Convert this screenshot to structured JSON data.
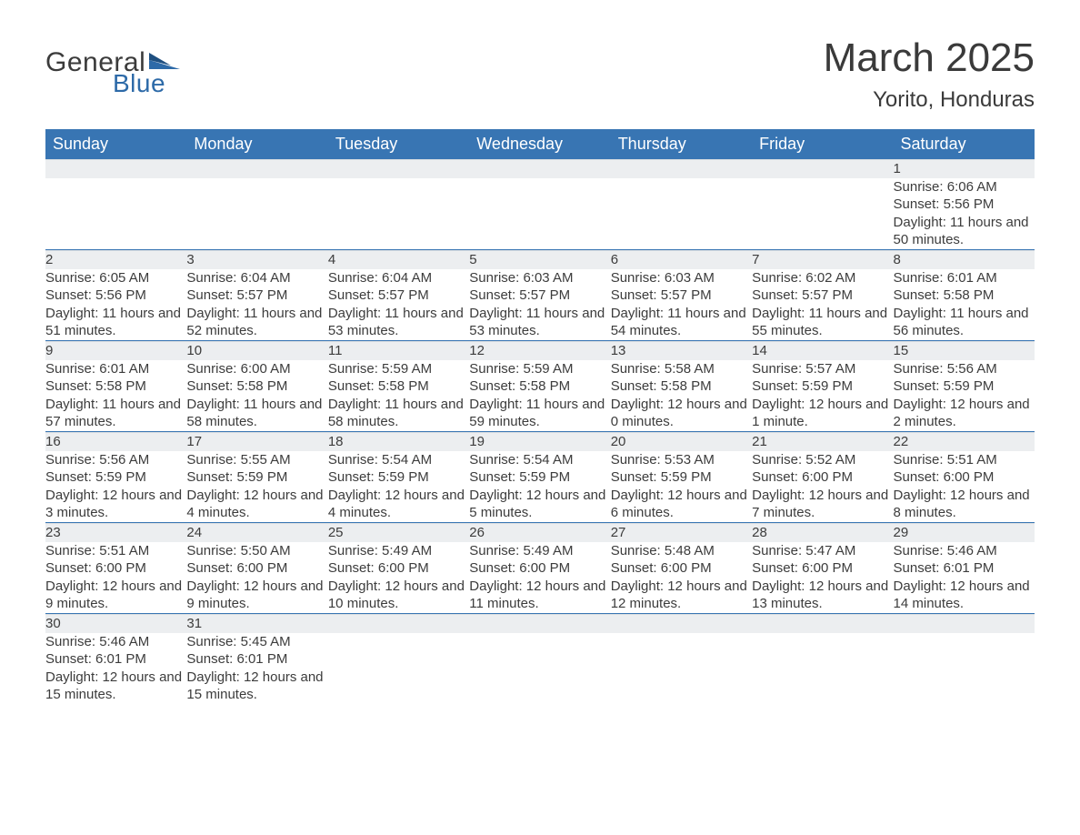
{
  "brand": {
    "name_part1": "General",
    "name_part2": "Blue"
  },
  "title": "March 2025",
  "subtitle": "Yorito, Honduras",
  "colors": {
    "header_bg": "#3875b3",
    "header_text": "#ffffff",
    "daynum_bg": "#eceef0",
    "text": "#3c3c3c",
    "page_bg": "#ffffff"
  },
  "weekdays": [
    "Sunday",
    "Monday",
    "Tuesday",
    "Wednesday",
    "Thursday",
    "Friday",
    "Saturday"
  ],
  "weeks": [
    [
      null,
      null,
      null,
      null,
      null,
      null,
      {
        "n": 1,
        "sunrise": "6:06 AM",
        "sunset": "5:56 PM",
        "daylight": "11 hours and 50 minutes."
      }
    ],
    [
      {
        "n": 2,
        "sunrise": "6:05 AM",
        "sunset": "5:56 PM",
        "daylight": "11 hours and 51 minutes."
      },
      {
        "n": 3,
        "sunrise": "6:04 AM",
        "sunset": "5:57 PM",
        "daylight": "11 hours and 52 minutes."
      },
      {
        "n": 4,
        "sunrise": "6:04 AM",
        "sunset": "5:57 PM",
        "daylight": "11 hours and 53 minutes."
      },
      {
        "n": 5,
        "sunrise": "6:03 AM",
        "sunset": "5:57 PM",
        "daylight": "11 hours and 53 minutes."
      },
      {
        "n": 6,
        "sunrise": "6:03 AM",
        "sunset": "5:57 PM",
        "daylight": "11 hours and 54 minutes."
      },
      {
        "n": 7,
        "sunrise": "6:02 AM",
        "sunset": "5:57 PM",
        "daylight": "11 hours and 55 minutes."
      },
      {
        "n": 8,
        "sunrise": "6:01 AM",
        "sunset": "5:58 PM",
        "daylight": "11 hours and 56 minutes."
      }
    ],
    [
      {
        "n": 9,
        "sunrise": "6:01 AM",
        "sunset": "5:58 PM",
        "daylight": "11 hours and 57 minutes."
      },
      {
        "n": 10,
        "sunrise": "6:00 AM",
        "sunset": "5:58 PM",
        "daylight": "11 hours and 58 minutes."
      },
      {
        "n": 11,
        "sunrise": "5:59 AM",
        "sunset": "5:58 PM",
        "daylight": "11 hours and 58 minutes."
      },
      {
        "n": 12,
        "sunrise": "5:59 AM",
        "sunset": "5:58 PM",
        "daylight": "11 hours and 59 minutes."
      },
      {
        "n": 13,
        "sunrise": "5:58 AM",
        "sunset": "5:58 PM",
        "daylight": "12 hours and 0 minutes."
      },
      {
        "n": 14,
        "sunrise": "5:57 AM",
        "sunset": "5:59 PM",
        "daylight": "12 hours and 1 minute."
      },
      {
        "n": 15,
        "sunrise": "5:56 AM",
        "sunset": "5:59 PM",
        "daylight": "12 hours and 2 minutes."
      }
    ],
    [
      {
        "n": 16,
        "sunrise": "5:56 AM",
        "sunset": "5:59 PM",
        "daylight": "12 hours and 3 minutes."
      },
      {
        "n": 17,
        "sunrise": "5:55 AM",
        "sunset": "5:59 PM",
        "daylight": "12 hours and 4 minutes."
      },
      {
        "n": 18,
        "sunrise": "5:54 AM",
        "sunset": "5:59 PM",
        "daylight": "12 hours and 4 minutes."
      },
      {
        "n": 19,
        "sunrise": "5:54 AM",
        "sunset": "5:59 PM",
        "daylight": "12 hours and 5 minutes."
      },
      {
        "n": 20,
        "sunrise": "5:53 AM",
        "sunset": "5:59 PM",
        "daylight": "12 hours and 6 minutes."
      },
      {
        "n": 21,
        "sunrise": "5:52 AM",
        "sunset": "6:00 PM",
        "daylight": "12 hours and 7 minutes."
      },
      {
        "n": 22,
        "sunrise": "5:51 AM",
        "sunset": "6:00 PM",
        "daylight": "12 hours and 8 minutes."
      }
    ],
    [
      {
        "n": 23,
        "sunrise": "5:51 AM",
        "sunset": "6:00 PM",
        "daylight": "12 hours and 9 minutes."
      },
      {
        "n": 24,
        "sunrise": "5:50 AM",
        "sunset": "6:00 PM",
        "daylight": "12 hours and 9 minutes."
      },
      {
        "n": 25,
        "sunrise": "5:49 AM",
        "sunset": "6:00 PM",
        "daylight": "12 hours and 10 minutes."
      },
      {
        "n": 26,
        "sunrise": "5:49 AM",
        "sunset": "6:00 PM",
        "daylight": "12 hours and 11 minutes."
      },
      {
        "n": 27,
        "sunrise": "5:48 AM",
        "sunset": "6:00 PM",
        "daylight": "12 hours and 12 minutes."
      },
      {
        "n": 28,
        "sunrise": "5:47 AM",
        "sunset": "6:00 PM",
        "daylight": "12 hours and 13 minutes."
      },
      {
        "n": 29,
        "sunrise": "5:46 AM",
        "sunset": "6:01 PM",
        "daylight": "12 hours and 14 minutes."
      }
    ],
    [
      {
        "n": 30,
        "sunrise": "5:46 AM",
        "sunset": "6:01 PM",
        "daylight": "12 hours and 15 minutes."
      },
      {
        "n": 31,
        "sunrise": "5:45 AM",
        "sunset": "6:01 PM",
        "daylight": "12 hours and 15 minutes."
      },
      null,
      null,
      null,
      null,
      null
    ]
  ],
  "labels": {
    "sunrise": "Sunrise: ",
    "sunset": "Sunset: ",
    "daylight": "Daylight: "
  }
}
